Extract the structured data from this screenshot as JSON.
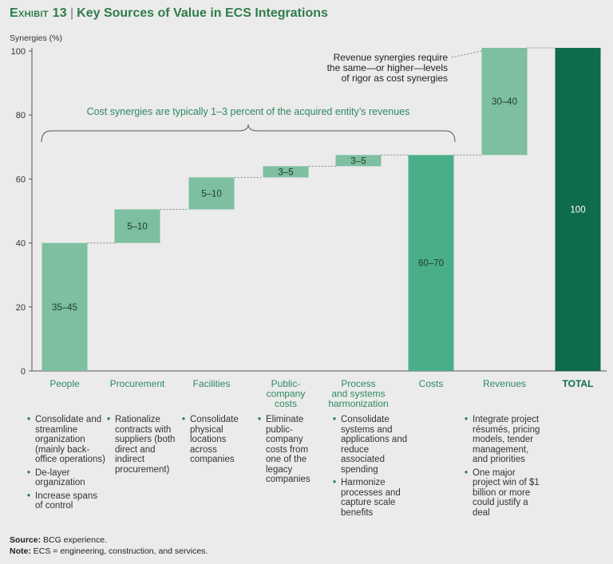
{
  "header": {
    "exhibit": "Exhibit 13",
    "separator": "|",
    "title": "Key Sources of Value in ECS Integrations"
  },
  "chart_data": {
    "type": "waterfall",
    "title": "Key Sources of Value in ECS Integrations",
    "ylabel": "Synergies (%)",
    "ylim": [
      0,
      100
    ],
    "yticks": [
      0,
      20,
      40,
      60,
      80,
      100
    ],
    "categories": [
      "People",
      "Procurement",
      "Facilities",
      "Public-company costs",
      "Process and systems harmonization",
      "Costs",
      "Revenues",
      "TOTAL"
    ],
    "bars": [
      {
        "category": "People",
        "label_lines": [
          "People"
        ],
        "base": 0,
        "top": 40,
        "value_label": "35–45",
        "kind": "step"
      },
      {
        "category": "Procurement",
        "label_lines": [
          "Procurement"
        ],
        "base": 40,
        "top": 50.5,
        "value_label": "5–10",
        "kind": "step"
      },
      {
        "category": "Facilities",
        "label_lines": [
          "Facilities"
        ],
        "base": 50.5,
        "top": 60.5,
        "value_label": "5–10",
        "kind": "step"
      },
      {
        "category": "Public-company costs",
        "label_lines": [
          "Public-",
          "company",
          "costs"
        ],
        "base": 60.5,
        "top": 64,
        "value_label": "3–5",
        "kind": "step"
      },
      {
        "category": "Process and systems harmonization",
        "label_lines": [
          "Process",
          "and systems",
          "harmonization"
        ],
        "base": 64,
        "top": 67.5,
        "value_label": "3–5",
        "kind": "step"
      },
      {
        "category": "Costs",
        "label_lines": [
          "Costs"
        ],
        "base": 0,
        "top": 67.5,
        "value_label": "60–70",
        "kind": "subtotal"
      },
      {
        "category": "Revenues",
        "label_lines": [
          "Revenues"
        ],
        "base": 67.5,
        "top": 101,
        "value_label": "30–40",
        "kind": "step"
      },
      {
        "category": "TOTAL",
        "label_lines": [
          "TOTAL"
        ],
        "base": 0,
        "top": 101,
        "value_label": "100",
        "kind": "total"
      }
    ],
    "annotations": {
      "cost_brace": "Cost synergies are typically 1–3 percent of the acquired entity’s revenues",
      "revenue_note": [
        "Revenue synergies require",
        "the same—or higher—levels",
        "of rigor as cost synergies"
      ]
    },
    "colors": {
      "step": "#7dbfa0",
      "subtotal": "#4aaf89",
      "total": "#0e6c4a",
      "accent": "#2e7d4a"
    }
  },
  "bullets": [
    [
      "Consolidate and streamline organization (mainly back-office operations)",
      "De-layer organization",
      "Increase spans of control"
    ],
    [
      "Rationalize contracts with suppliers (both direct and indirect procurement)"
    ],
    [
      "Consolidate physical locations across companies"
    ],
    [
      "Eliminate public-company costs from one of the legacy companies"
    ],
    [
      "Consolidate systems and applications and reduce associated spending",
      "Harmonize processes and capture scale benefits"
    ],
    [],
    [
      "Integrate project résumés, pricing models, tender management, and priorities",
      "One major project win of $1 billion or more could justify a deal"
    ],
    []
  ],
  "footer": {
    "source_label": "Source:",
    "source_text": "BCG experience.",
    "note_label": "Note:",
    "note_text": "ECS = engineering, construction, and services."
  }
}
